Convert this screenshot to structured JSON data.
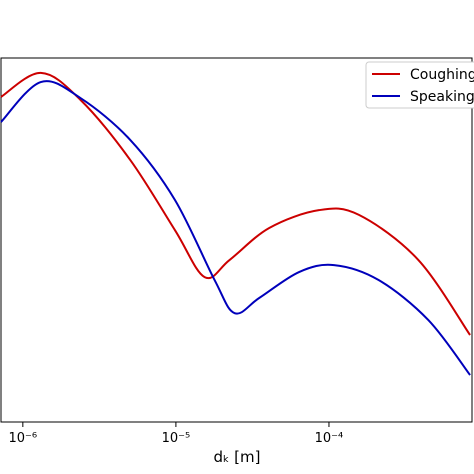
{
  "chart_data": {
    "type": "line",
    "x_scale": "log",
    "xlabel": "dₖ [m]",
    "xlim": [
      7.2e-07,
      0.00086
    ],
    "ylim": [
      0,
      1
    ],
    "xticks": [
      {
        "value": 1e-06,
        "label": "10⁻⁶"
      },
      {
        "value": 1e-05,
        "label": "10⁻⁵"
      },
      {
        "value": 0.0001,
        "label": "10⁻⁴"
      }
    ],
    "legend": "upper right",
    "series": [
      {
        "name": "Coughing",
        "color": "#cc0000",
        "x": [
          7.2e-07,
          1.31e-06,
          2.38e-06,
          5.03e-06,
          9.86e-06,
          1.54e-05,
          2.24e-05,
          4.07e-05,
          8.6e-05,
          0.000157,
          0.000384,
          0.000835
        ],
        "values": [
          0.893,
          0.959,
          0.885,
          0.72,
          0.527,
          0.398,
          0.445,
          0.533,
          0.582,
          0.569,
          0.445,
          0.239
        ]
      },
      {
        "name": "Speaking",
        "color": "#0000bb",
        "x": [
          7.2e-07,
          1.31e-06,
          2.38e-06,
          5.03e-06,
          9.86e-06,
          1.79e-05,
          2.42e-05,
          3.51e-05,
          6.38e-05,
          0.000108,
          0.000211,
          0.000446,
          0.000835
        ],
        "values": [
          0.824,
          0.934,
          0.89,
          0.775,
          0.61,
          0.39,
          0.299,
          0.341,
          0.412,
          0.431,
          0.39,
          0.28,
          0.129
        ]
      }
    ]
  }
}
